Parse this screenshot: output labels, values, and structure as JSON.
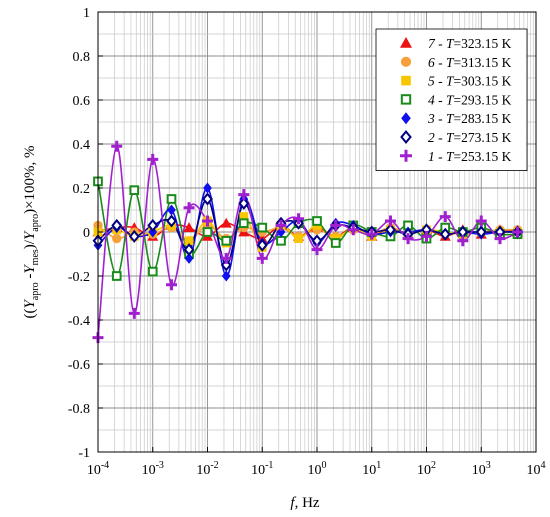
{
  "chart_data": {
    "type": "line",
    "x_scale": "log",
    "xlim": [
      0.0001,
      10000
    ],
    "ylim": [
      -1,
      1
    ],
    "grid": true,
    "legend_position": "top-right",
    "xlabel": {
      "italic": "f",
      "rest": ", Hz"
    },
    "ylabel": {
      "p1": "((",
      "Y1": "Y",
      "s1": "apro",
      "m": " -",
      "Y2": "Y",
      "s2": "mes",
      "p3": ")/",
      "Y3": "Y",
      "s3": "apro",
      "tail": ")×100%, %"
    },
    "xtick_labels": [
      {
        "base": "10",
        "exp": "-4",
        "value": 0.0001
      },
      {
        "base": "10",
        "exp": "-3",
        "value": 0.001
      },
      {
        "base": "10",
        "exp": "-2",
        "value": 0.01
      },
      {
        "base": "10",
        "exp": "-1",
        "value": 0.1
      },
      {
        "base": "10",
        "exp": "0",
        "value": 1
      },
      {
        "base": "10",
        "exp": "1",
        "value": 10
      },
      {
        "base": "10",
        "exp": "2",
        "value": 100
      },
      {
        "base": "10",
        "exp": "3",
        "value": 1000
      },
      {
        "base": "10",
        "exp": "4",
        "value": 10000
      }
    ],
    "yticks": [
      1,
      0.8,
      0.6,
      0.4,
      0.2,
      0,
      -0.2,
      -0.4,
      -0.6,
      -0.8,
      -1
    ],
    "ytick_labels": [
      "1",
      "0.8",
      "0.6",
      "0.4",
      "0.2",
      "0",
      "-0.2",
      "-0.4",
      "-0.6",
      "-0.8",
      "-1"
    ],
    "x": [
      0.0001,
      0.00022,
      0.00046,
      0.001,
      0.0022,
      0.0046,
      0.01,
      0.022,
      0.046,
      0.1,
      0.22,
      0.46,
      1,
      2.2,
      4.6,
      10,
      22,
      46,
      100,
      220,
      460,
      1000,
      2200,
      4600
    ],
    "series": [
      {
        "id": "7",
        "name_num": "7",
        "name_mid": " - ",
        "name_var": "T",
        "name_val": "=323.15 K",
        "color": "#ee1111",
        "marker": "triangle",
        "values": [
          0.0,
          0.02,
          0.02,
          -0.02,
          0.03,
          0.02,
          -0.02,
          0.04,
          0.0,
          -0.03,
          0.03,
          -0.02,
          0.02,
          -0.02,
          0.02,
          -0.02,
          0.02,
          -0.01,
          0.01,
          -0.02,
          0.01,
          -0.01,
          0.01,
          0.0
        ]
      },
      {
        "id": "6",
        "name_num": "6",
        "name_mid": " - ",
        "name_var": "T",
        "name_val": "=313.15 K",
        "color": "#f5a03a",
        "marker": "circle",
        "values": [
          0.03,
          -0.03,
          0.0,
          -0.01,
          0.02,
          -0.04,
          0.03,
          -0.03,
          0.02,
          0.0,
          0.02,
          -0.02,
          0.01,
          -0.02,
          0.01,
          -0.01,
          0.02,
          -0.01,
          0.01,
          0.0,
          -0.01,
          0.0,
          0.01,
          0.01
        ]
      },
      {
        "id": "5",
        "name_num": "5",
        "name_mid": " - ",
        "name_var": "T",
        "name_val": "=303.15 K",
        "color": "#f7c600",
        "marker": "square",
        "values": [
          0.0,
          0.01,
          -0.02,
          0.0,
          0.03,
          -0.04,
          0.05,
          -0.05,
          0.07,
          -0.07,
          0.03,
          -0.03,
          0.03,
          -0.03,
          0.02,
          -0.02,
          0.01,
          -0.01,
          0.01,
          0.0,
          -0.01,
          0.0,
          0.0,
          0.0
        ]
      },
      {
        "id": "4",
        "name_num": "4",
        "name_mid": " - ",
        "name_var": "T",
        "name_val": "=293.15 K",
        "color": "#1a8a1a",
        "marker": "square-open",
        "values": [
          0.23,
          -0.2,
          0.19,
          -0.18,
          0.15,
          -0.1,
          0.0,
          -0.04,
          0.04,
          0.02,
          -0.04,
          0.04,
          0.05,
          -0.05,
          0.03,
          0.0,
          -0.02,
          0.03,
          -0.03,
          0.02,
          0.0,
          0.02,
          -0.01,
          -0.01
        ]
      },
      {
        "id": "3",
        "name_num": "3",
        "name_mid": " - ",
        "name_var": "T",
        "name_val": "=283.15 K",
        "color": "#1010ee",
        "marker": "diamond",
        "values": [
          -0.06,
          0.02,
          -0.02,
          0.0,
          0.1,
          -0.12,
          0.2,
          -0.2,
          0.15,
          -0.05,
          0.0,
          0.05,
          -0.05,
          0.04,
          0.03,
          -0.01,
          0.0,
          0.0,
          0.01,
          -0.01,
          0.0,
          -0.01,
          0.0,
          0.0
        ]
      },
      {
        "id": "2",
        "name_num": "2",
        "name_mid": " - ",
        "name_var": "T",
        "name_val": "=273.15 K",
        "color": "#000080",
        "marker": "diamond-open",
        "values": [
          -0.04,
          0.03,
          -0.02,
          0.03,
          0.05,
          -0.08,
          0.15,
          -0.15,
          0.13,
          -0.06,
          0.04,
          0.04,
          -0.04,
          0.03,
          0.02,
          0.0,
          0.01,
          -0.01,
          0.01,
          -0.01,
          0.0,
          0.0,
          0.0,
          0.0
        ]
      },
      {
        "id": "1",
        "name_num": "1",
        "name_mid": " - ",
        "name_var": "T",
        "name_val": "=253.15 K",
        "color": "#a020d0",
        "marker": "plus",
        "values": [
          -0.48,
          0.39,
          -0.37,
          0.33,
          -0.24,
          0.11,
          0.05,
          -0.12,
          0.17,
          -0.12,
          0.03,
          0.06,
          -0.08,
          0.03,
          0.01,
          -0.01,
          0.05,
          -0.03,
          -0.02,
          0.07,
          -0.04,
          0.05,
          -0.03,
          0.0
        ]
      }
    ]
  }
}
